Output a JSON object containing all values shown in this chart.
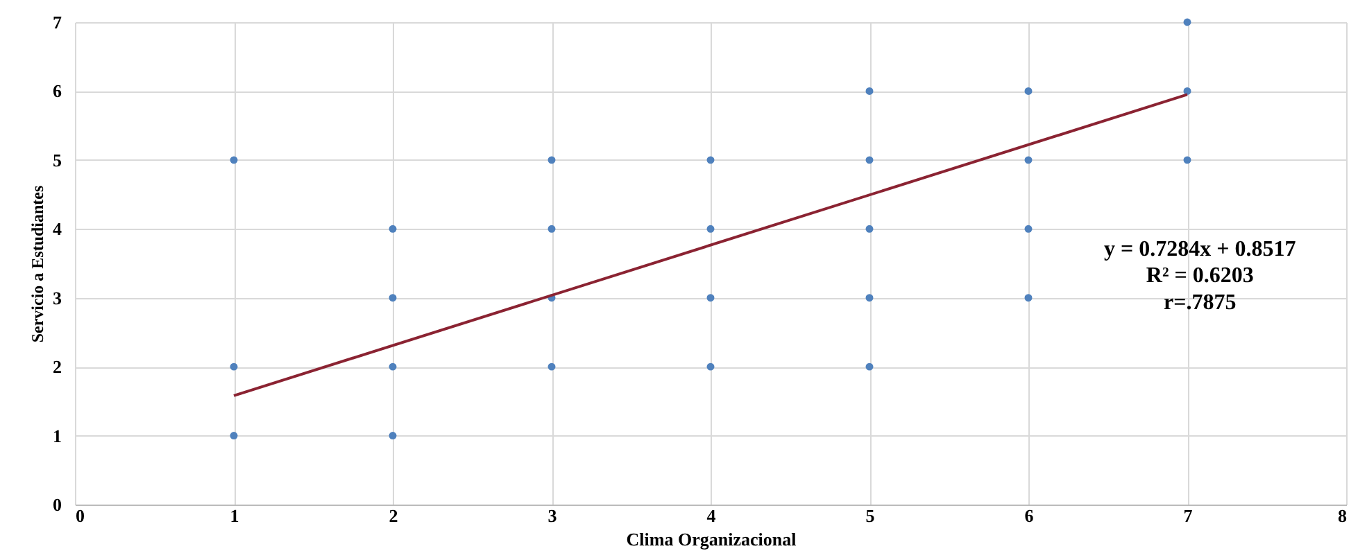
{
  "chart_data": {
    "type": "scatter",
    "xlabel": "Clima Organizacional",
    "ylabel": "Servicio a Estudiantes",
    "xlim": [
      0,
      8
    ],
    "xticks": [
      0,
      1,
      2,
      3,
      4,
      5,
      6,
      7,
      8
    ],
    "ylim": [
      0,
      7
    ],
    "yticks": [
      0,
      1,
      2,
      3,
      4,
      5,
      6,
      7
    ],
    "grid": true,
    "series": [
      {
        "marker": "circle",
        "color": "#4f81bd",
        "x": [
          1,
          1,
          1,
          2,
          2,
          2,
          2,
          3,
          3,
          3,
          3,
          4,
          4,
          4,
          4,
          5,
          5,
          5,
          5,
          5,
          6,
          6,
          6,
          6,
          7,
          7,
          7
        ],
        "values": [
          5,
          2,
          1,
          4,
          3,
          2,
          1,
          5,
          4,
          3,
          2,
          5,
          4,
          3,
          2,
          6,
          5,
          4,
          3,
          2,
          6,
          5,
          4,
          3,
          7,
          6,
          5
        ]
      },
      {
        "type": "line",
        "color": "#8b2332",
        "x": [
          1,
          7
        ],
        "values": [
          1.58,
          5.95
        ]
      }
    ],
    "annotations": [
      "y = 0.7284x + 0.8517",
      "R² = 0.6203",
      "r=.7875"
    ]
  }
}
